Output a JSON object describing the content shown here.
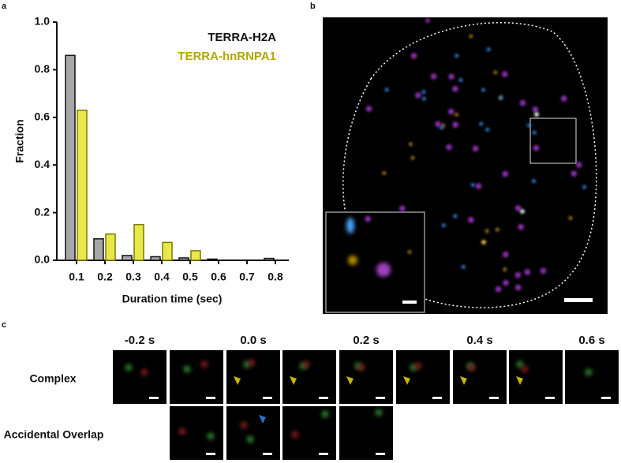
{
  "panel_labels": [
    "a",
    "b",
    "c"
  ],
  "chart_data": {
    "type": "bar",
    "xlabel": "Duration time (sec)",
    "ylabel": "Fraction",
    "categories": [
      "0.1",
      "0.2",
      "0.3",
      "0.4",
      "0.5",
      "0.6",
      "0.7",
      "0.8"
    ],
    "series": [
      {
        "name": "TERRA-H2A",
        "color": "#a6a6a6",
        "edge": "#111111",
        "label_color": "#111111",
        "values": [
          0.86,
          0.09,
          0.02,
          0.015,
          0.01,
          0.005,
          0,
          0.008
        ]
      },
      {
        "name": "TERRA-hnRNPA1",
        "color": "#e8e84a",
        "edge": "#7d7a00",
        "label_color": "#b3a600",
        "values": [
          0.63,
          0.11,
          0.15,
          0.075,
          0.04,
          0,
          0,
          0
        ]
      }
    ],
    "ylim": [
      0,
      1
    ],
    "yticks": [
      {
        "value": 0,
        "label": "0.0"
      },
      0.2,
      0.4,
      0.6,
      0.8,
      {
        "value": 1,
        "label": "1.0"
      }
    ],
    "legend": "upper-right",
    "grid": false
  },
  "panel_c": {
    "times": [
      "-0.2 s",
      "0.0 s",
      "0.2 s",
      "0.4 s",
      "0.6 s"
    ],
    "rows": [
      "Complex",
      "Accidental Overlap"
    ]
  }
}
